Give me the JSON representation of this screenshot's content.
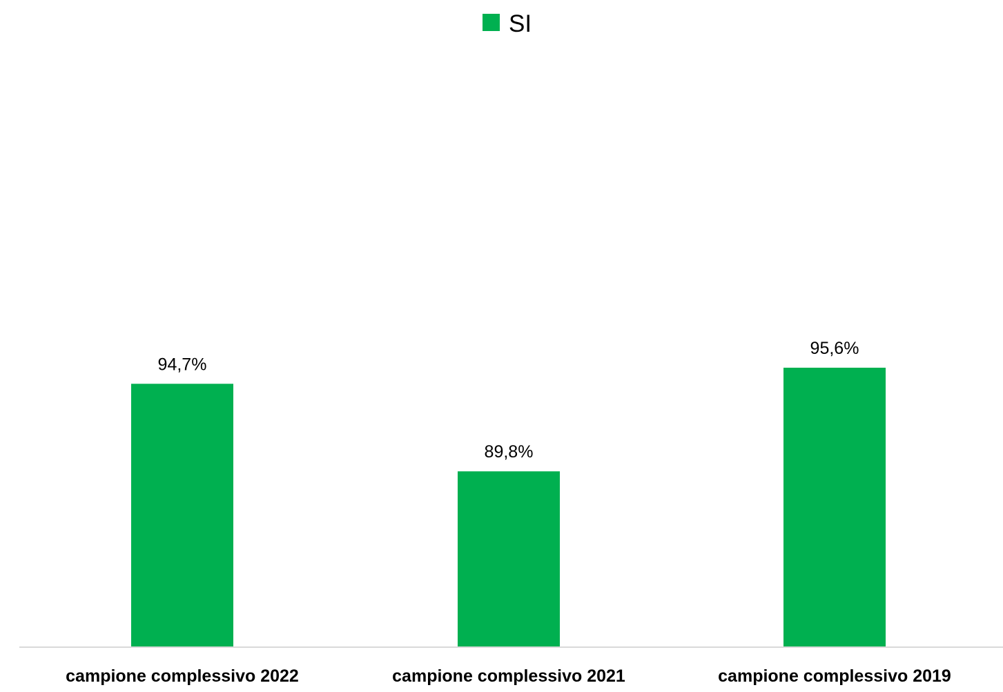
{
  "chart_data": {
    "type": "bar",
    "categories": [
      "campione complessivo 2022",
      "campione complessivo 2021",
      "campione complessivo 2019"
    ],
    "series": [
      {
        "name": "SI",
        "values": [
          94.7,
          89.8,
          95.6
        ],
        "value_labels": [
          "94,7%",
          "89,8%",
          "95,6%"
        ],
        "color": "#00b050"
      }
    ],
    "title": "",
    "xlabel": "",
    "ylabel": "",
    "ylim": [
      80,
      100
    ],
    "grid": false,
    "y_axis_visible": false,
    "legend_position": "top-center",
    "axis_color": "#d9d9d9"
  }
}
